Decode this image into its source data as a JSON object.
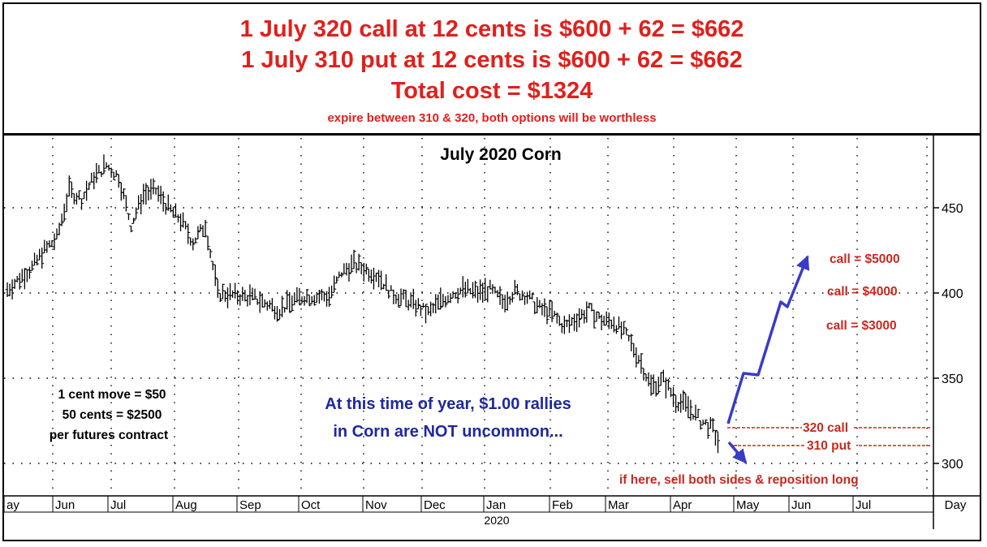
{
  "header": {
    "line1": "1 July 320 call at 12 cents is $600 + 62 = $662",
    "line2": "1 July 310 put at 12 cents is $600 + 62 = $662",
    "line3": "Total cost = $1324",
    "note": "expire between 310 & 320, both options will be worthless"
  },
  "colors": {
    "header_red": "#e0201c",
    "annotation_red": "#c8281e",
    "arrow_blue": "#3a3ac8",
    "text_blue": "#1e28a0",
    "bars": "#000000"
  },
  "chart_data": {
    "type": "ohlc",
    "title": "July 2020 Corn",
    "x_unit_label": "Day",
    "year_label": "2020",
    "y_axis": {
      "ticks": [
        300,
        350,
        400,
        450
      ],
      "range": [
        288,
        493
      ],
      "side": "right",
      "grid": true
    },
    "x_axis": {
      "months": [
        "May",
        "Jun",
        "Jul",
        "Aug",
        "Sep",
        "Oct",
        "Nov",
        "Dec",
        "Jan",
        "Feb",
        "Mar",
        "Apr",
        "May",
        "Jun",
        "Jul"
      ],
      "month_display": [
        "ay",
        "Jun",
        "Jul",
        "Aug",
        "Sep",
        "Oct",
        "Nov",
        "Dec",
        "Jan",
        "Feb",
        "Mar",
        "Apr",
        "May",
        "Jun",
        "Jul"
      ]
    },
    "series": [
      {
        "waypoints": [
          [
            0,
            402
          ],
          [
            2,
            415
          ],
          [
            3,
            425
          ],
          [
            4,
            432
          ],
          [
            5,
            460
          ],
          [
            6,
            455
          ],
          [
            7,
            468
          ],
          [
            8,
            475
          ],
          [
            9,
            468
          ],
          [
            10,
            440
          ],
          [
            11,
            458
          ],
          [
            12,
            460
          ],
          [
            13,
            450
          ],
          [
            14,
            443
          ],
          [
            15,
            430
          ],
          [
            16,
            440
          ],
          [
            17,
            400
          ],
          [
            20,
            397
          ],
          [
            22,
            390
          ],
          [
            23,
            395
          ],
          [
            24,
            398
          ],
          [
            26,
            398
          ],
          [
            27,
            412
          ],
          [
            28,
            417
          ],
          [
            30,
            410
          ],
          [
            31,
            400
          ],
          [
            33,
            393
          ],
          [
            34,
            388
          ],
          [
            35,
            395
          ],
          [
            36,
            400
          ],
          [
            37,
            402
          ],
          [
            38,
            400
          ],
          [
            39,
            402
          ],
          [
            40,
            395
          ],
          [
            41,
            401
          ],
          [
            42,
            398
          ],
          [
            43,
            391
          ],
          [
            44,
            388
          ],
          [
            45,
            380
          ],
          [
            46,
            385
          ],
          [
            47,
            390
          ],
          [
            48,
            384
          ],
          [
            49,
            383
          ],
          [
            50,
            375
          ],
          [
            51,
            362
          ],
          [
            52,
            345
          ],
          [
            53,
            349
          ],
          [
            54,
            337
          ],
          [
            55,
            333
          ],
          [
            56,
            325
          ],
          [
            57,
            320
          ],
          [
            57.5,
            311
          ]
        ]
      }
    ],
    "annotations": {
      "call_5000": "call = $5000",
      "call_4000": "call = $4000",
      "call_3000": "call = $3000",
      "call_320": "320 call",
      "put_310": "310 put",
      "reposition": "if here, sell both sides & reposition long",
      "rally_line1": "At this time of year, $1.00 rallies",
      "rally_line2": "in Corn are NOT uncommon...",
      "contract_line1": "1 cent move = $50",
      "contract_line2": "50 cents = $2500",
      "contract_line3": "per futures contract"
    }
  }
}
